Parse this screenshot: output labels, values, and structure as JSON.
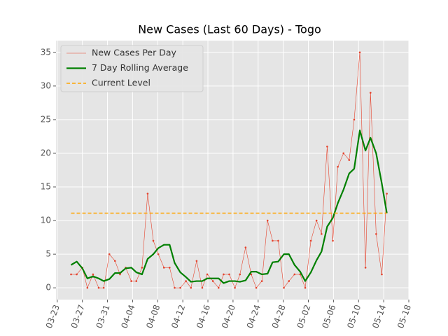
{
  "chart_data": {
    "type": "line",
    "title": "New Cases (Last 60 Days) - Togo",
    "x": [
      2.2,
      3.1,
      4.0,
      4.8,
      5.7,
      6.6,
      7.4,
      8.3,
      9.2,
      10.0,
      10.9,
      11.8,
      12.6,
      13.5,
      14.4,
      15.3,
      16.1,
      17.0,
      17.9,
      18.7,
      19.6,
      20.5,
      21.3,
      22.2,
      23.1,
      23.9,
      24.8,
      25.7,
      26.5,
      27.4,
      28.3,
      29.1,
      30.0,
      30.9,
      31.7,
      32.6,
      33.5,
      34.3,
      35.2,
      36.1,
      36.9,
      37.8,
      38.7,
      39.5,
      40.4,
      41.3,
      42.1,
      43.0,
      43.9,
      44.7,
      45.6,
      46.5,
      47.3,
      48.2,
      49.1,
      49.9,
      50.8,
      51.7,
      52.5
    ],
    "series": [
      {
        "name": "New Cases Per Day",
        "color": "#e5432d",
        "marker": true,
        "values": [
          2,
          2,
          3,
          0,
          2,
          0,
          0,
          5,
          4,
          2,
          3,
          1,
          1,
          3,
          14,
          7,
          5,
          3,
          3,
          0,
          0,
          1,
          0,
          4,
          0,
          2,
          1,
          0,
          2,
          2,
          0,
          2,
          6,
          2,
          0,
          1,
          10,
          7,
          7,
          0,
          1,
          2,
          2,
          0,
          7,
          10,
          8,
          21,
          7,
          18,
          20,
          19,
          25,
          35,
          3,
          29,
          8,
          2,
          14
        ]
      },
      {
        "name": "7 Day Rolling Average",
        "color": "#008000",
        "values": [
          3.4,
          3.9,
          2.9,
          1.4,
          1.7,
          1.4,
          1.0,
          1.3,
          2.2,
          2.2,
          2.9,
          3.0,
          2.3,
          2.0,
          4.3,
          5.0,
          5.9,
          6.4,
          6.4,
          3.7,
          2.3,
          1.6,
          0.9,
          1.0,
          1.0,
          1.4,
          1.4,
          1.4,
          0.7,
          1.0,
          1.0,
          0.9,
          1.1,
          2.4,
          2.4,
          2.0,
          2.1,
          3.8,
          3.9,
          5.0,
          5.0,
          3.4,
          2.4,
          1.0,
          2.3,
          4.1,
          5.4,
          9.1,
          10.4,
          12.6,
          14.6,
          17.0,
          17.7,
          23.4,
          20.4,
          22.3,
          20.0,
          15.5,
          11.1
        ]
      },
      {
        "name": "Current Level",
        "color": "#ffa500",
        "dashed": true,
        "level": 11.1
      }
    ],
    "xlim": [
      -0.2,
      56
    ],
    "xticks": [
      {
        "value": 0,
        "label": "03-23"
      },
      {
        "value": 4,
        "label": "03-27"
      },
      {
        "value": 8,
        "label": "03-31"
      },
      {
        "value": 12,
        "label": "04-04"
      },
      {
        "value": 16,
        "label": "04-08"
      },
      {
        "value": 20,
        "label": "04-12"
      },
      {
        "value": 24,
        "label": "04-16"
      },
      {
        "value": 28,
        "label": "04-20"
      },
      {
        "value": 32,
        "label": "04-24"
      },
      {
        "value": 36,
        "label": "04-28"
      },
      {
        "value": 40,
        "label": "05-02"
      },
      {
        "value": 44,
        "label": "05-06"
      },
      {
        "value": 48,
        "label": "05-10"
      },
      {
        "value": 52,
        "label": "05-14"
      },
      {
        "value": 56,
        "label": "05-18"
      }
    ],
    "ylim": [
      -1.75,
      36.75
    ],
    "yticks": [
      0,
      5,
      10,
      15,
      20,
      25,
      30,
      35
    ],
    "grid": true,
    "legend": "upper left"
  }
}
